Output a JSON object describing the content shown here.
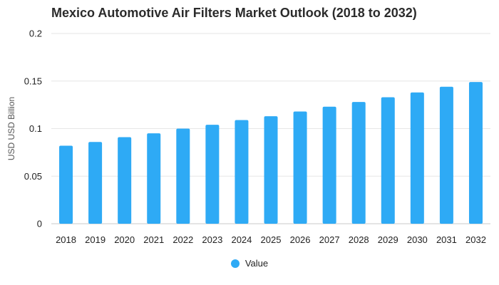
{
  "chart_data": {
    "type": "bar",
    "title": "Mexico Automotive Air Filters Market Outlook (2018 to 2032)",
    "xlabel": "",
    "ylabel": "USD USD Billion",
    "ylim": [
      0,
      0.2
    ],
    "yticks": [
      {
        "value": 0,
        "label": "0"
      },
      {
        "value": 0.05,
        "label": "0.05"
      },
      {
        "value": 0.1,
        "label": "0.1"
      },
      {
        "value": 0.15,
        "label": "0.15"
      },
      {
        "value": 0.2,
        "label": "0.2"
      }
    ],
    "grid": true,
    "legend_position": "bottom",
    "categories": [
      "2018",
      "2019",
      "2020",
      "2021",
      "2022",
      "2023",
      "2024",
      "2025",
      "2026",
      "2027",
      "2028",
      "2029",
      "2030",
      "2031",
      "2032"
    ],
    "series": [
      {
        "name": "Value",
        "color": "#2eaaf5",
        "values": [
          0.082,
          0.086,
          0.091,
          0.095,
          0.1,
          0.104,
          0.109,
          0.113,
          0.118,
          0.123,
          0.128,
          0.133,
          0.138,
          0.144,
          0.149
        ]
      }
    ]
  }
}
